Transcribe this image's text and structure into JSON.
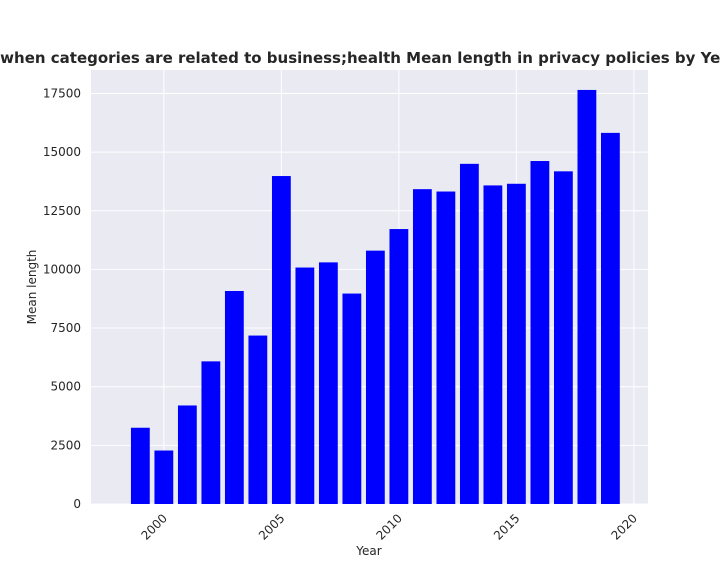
{
  "chart_data": {
    "type": "bar",
    "title": "when categories are related to business;health Mean length in privacy policies by Year",
    "xlabel": "Year",
    "ylabel": "Mean length",
    "x": [
      1999,
      2000,
      2001,
      2002,
      2003,
      2004,
      2005,
      2006,
      2007,
      2008,
      2009,
      2010,
      2011,
      2012,
      2013,
      2014,
      2015,
      2016,
      2017,
      2018,
      2019
    ],
    "values": [
      3250,
      2280,
      4200,
      6080,
      9080,
      7180,
      13980,
      10080,
      10300,
      8970,
      10800,
      11720,
      13420,
      13320,
      14500,
      13580,
      13650,
      14620,
      14180,
      17650,
      15820
    ],
    "xlim": [
      1996.9,
      2020.6
    ],
    "ylim": [
      0,
      18500
    ],
    "xticks": [
      2000,
      2005,
      2010,
      2015,
      2020
    ],
    "yticks": [
      0,
      2500,
      5000,
      7500,
      10000,
      12500,
      15000,
      17500
    ],
    "grid": true,
    "bar_color": "#0000ff",
    "background_color": "#eaeaf2",
    "grid_color": "#ffffff"
  }
}
